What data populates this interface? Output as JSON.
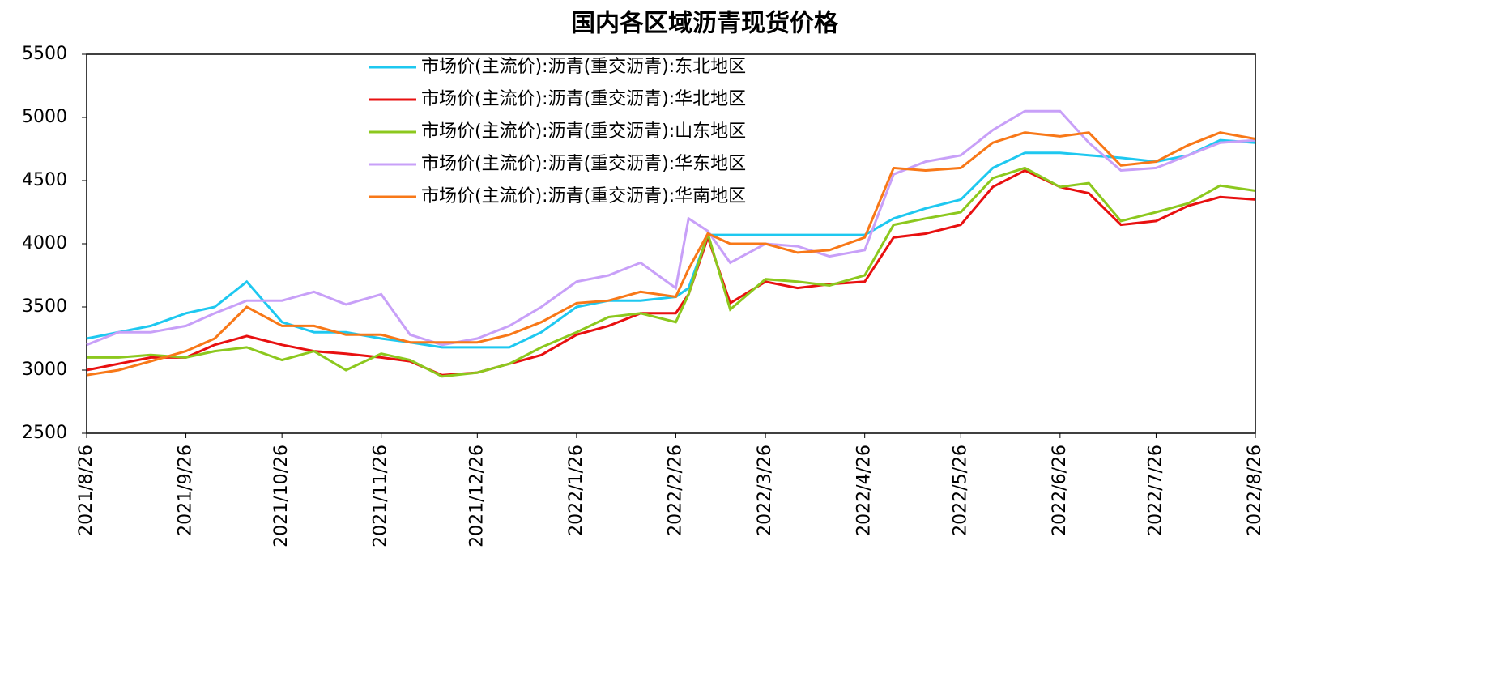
{
  "chart_data": {
    "type": "line",
    "title": "国内各区域沥青现货价格",
    "x": [
      "2021/8/26",
      "2021/9/5",
      "2021/9/15",
      "2021/9/26",
      "2021/10/5",
      "2021/10/15",
      "2021/10/26",
      "2021/11/5",
      "2021/11/15",
      "2021/11/26",
      "2021/12/5",
      "2021/12/15",
      "2021/12/26",
      "2022/1/5",
      "2022/1/15",
      "2022/1/26",
      "2022/2/5",
      "2022/2/15",
      "2022/2/26",
      "2022/3/2",
      "2022/3/8",
      "2022/3/15",
      "2022/3/26",
      "2022/4/5",
      "2022/4/15",
      "2022/4/26",
      "2022/5/5",
      "2022/5/15",
      "2022/5/26",
      "2022/6/5",
      "2022/6/15",
      "2022/6/26",
      "2022/7/5",
      "2022/7/15",
      "2022/7/26",
      "2022/8/5",
      "2022/8/15",
      "2022/8/26"
    ],
    "series": [
      {
        "name": "市场价(主流价):沥青(重交沥青):东北地区",
        "color": "#1ec8f0",
        "values": [
          3250,
          3300,
          3350,
          3450,
          3500,
          3700,
          3380,
          3300,
          3300,
          3250,
          3220,
          3180,
          3180,
          3180,
          3300,
          3500,
          3550,
          3550,
          3580,
          3650,
          4070,
          4070,
          4070,
          4070,
          4070,
          4070,
          4200,
          4280,
          4350,
          4600,
          4720,
          4720,
          4700,
          4680,
          4650,
          4700,
          4820,
          4800
        ]
      },
      {
        "name": "市场价(主流价):沥青(重交沥青):华北地区",
        "color": "#e81010",
        "values": [
          3000,
          3050,
          3100,
          3100,
          3200,
          3270,
          3200,
          3150,
          3130,
          3100,
          3070,
          2960,
          2980,
          3050,
          3120,
          3280,
          3350,
          3450,
          3450,
          3600,
          4050,
          3530,
          3700,
          3650,
          3680,
          3700,
          4050,
          4080,
          4150,
          4450,
          4580,
          4450,
          4400,
          4150,
          4180,
          4300,
          4370,
          4350
        ]
      },
      {
        "name": "市场价(主流价):沥青(重交沥青):山东地区",
        "color": "#8cc81e",
        "values": [
          3100,
          3100,
          3120,
          3100,
          3150,
          3180,
          3080,
          3150,
          3000,
          3130,
          3080,
          2950,
          2980,
          3050,
          3180,
          3300,
          3420,
          3450,
          3380,
          3600,
          4080,
          3480,
          3720,
          3700,
          3670,
          3750,
          4150,
          4200,
          4250,
          4520,
          4600,
          4450,
          4480,
          4180,
          4250,
          4320,
          4460,
          4420
        ]
      },
      {
        "name": "市场价(主流价):沥青(重交沥青):华东地区",
        "color": "#c8a0f8",
        "values": [
          3200,
          3300,
          3300,
          3350,
          3450,
          3550,
          3550,
          3620,
          3520,
          3600,
          3280,
          3200,
          3250,
          3350,
          3500,
          3700,
          3750,
          3850,
          3650,
          4200,
          4100,
          3850,
          4000,
          3980,
          3900,
          3950,
          4550,
          4650,
          4700,
          4900,
          5050,
          5050,
          4800,
          4580,
          4600,
          4700,
          4800,
          4820
        ]
      },
      {
        "name": "市场价(主流价):沥青(重交沥青):华南地区",
        "color": "#f87818",
        "values": [
          2960,
          3000,
          3070,
          3150,
          3250,
          3500,
          3350,
          3350,
          3280,
          3280,
          3220,
          3220,
          3220,
          3280,
          3380,
          3530,
          3550,
          3620,
          3580,
          3800,
          4080,
          4000,
          4000,
          3930,
          3950,
          4050,
          4600,
          4580,
          4600,
          4800,
          4880,
          4850,
          4880,
          4620,
          4650,
          4780,
          4880,
          4830
        ]
      }
    ],
    "xticks": [
      "2021/8/26",
      "2021/9/26",
      "2021/10/26",
      "2021/11/26",
      "2021/12/26",
      "2022/1/26",
      "2022/2/26",
      "2022/3/26",
      "2022/4/26",
      "2022/5/26",
      "2022/6/26",
      "2022/7/26",
      "2022/8/26"
    ],
    "ylim": [
      2500,
      5500
    ],
    "yticks": [
      2500,
      3000,
      3500,
      4000,
      4500,
      5000,
      5500
    ],
    "legend": "top"
  }
}
